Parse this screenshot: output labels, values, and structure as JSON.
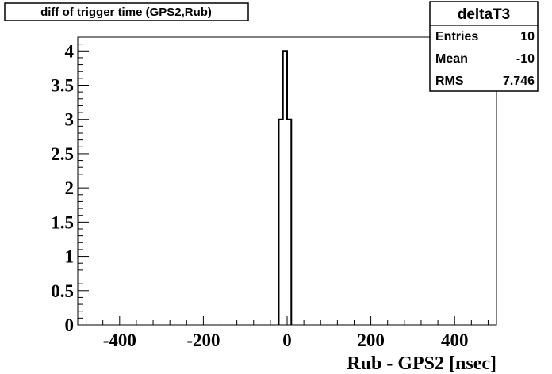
{
  "title": "diff of trigger time (GPS2,Rub)",
  "stats": {
    "name": "deltaT3",
    "rows": [
      {
        "label": "Entries",
        "value": "10"
      },
      {
        "label": "Mean",
        "value": "-10"
      },
      {
        "label": "RMS",
        "value": "7.746"
      }
    ]
  },
  "chart_data": {
    "type": "bar",
    "style": "step-histogram",
    "title": "diff of trigger time (GPS2,Rub)",
    "xlabel": "Rub - GPS2 [nsec]",
    "ylabel": "",
    "xlim": [
      -500,
      500
    ],
    "ylim": [
      0,
      4.2
    ],
    "bin_width": 10,
    "bins": [
      {
        "x_low": -20,
        "x_high": -10,
        "value": 3
      },
      {
        "x_low": -10,
        "x_high": 0,
        "value": 4
      },
      {
        "x_low": 0,
        "x_high": 10,
        "value": 3
      }
    ],
    "x_ticks": [
      {
        "value": -400,
        "label": "-400"
      },
      {
        "value": -200,
        "label": "-200"
      },
      {
        "value": 0,
        "label": "0"
      },
      {
        "value": 200,
        "label": "200"
      },
      {
        "value": 400,
        "label": "400"
      }
    ],
    "y_ticks": [
      {
        "value": 0,
        "label": "0"
      },
      {
        "value": 0.5,
        "label": "0.5"
      },
      {
        "value": 1,
        "label": "1"
      },
      {
        "value": 1.5,
        "label": "1.5"
      },
      {
        "value": 2,
        "label": "2"
      },
      {
        "value": 2.5,
        "label": "2.5"
      },
      {
        "value": 3,
        "label": "3"
      },
      {
        "value": 3.5,
        "label": "3.5"
      },
      {
        "value": 4,
        "label": "4"
      }
    ],
    "x_minor_per_major": 5,
    "y_minor_per_major": 5,
    "grid": false,
    "line_color": "#000000"
  }
}
